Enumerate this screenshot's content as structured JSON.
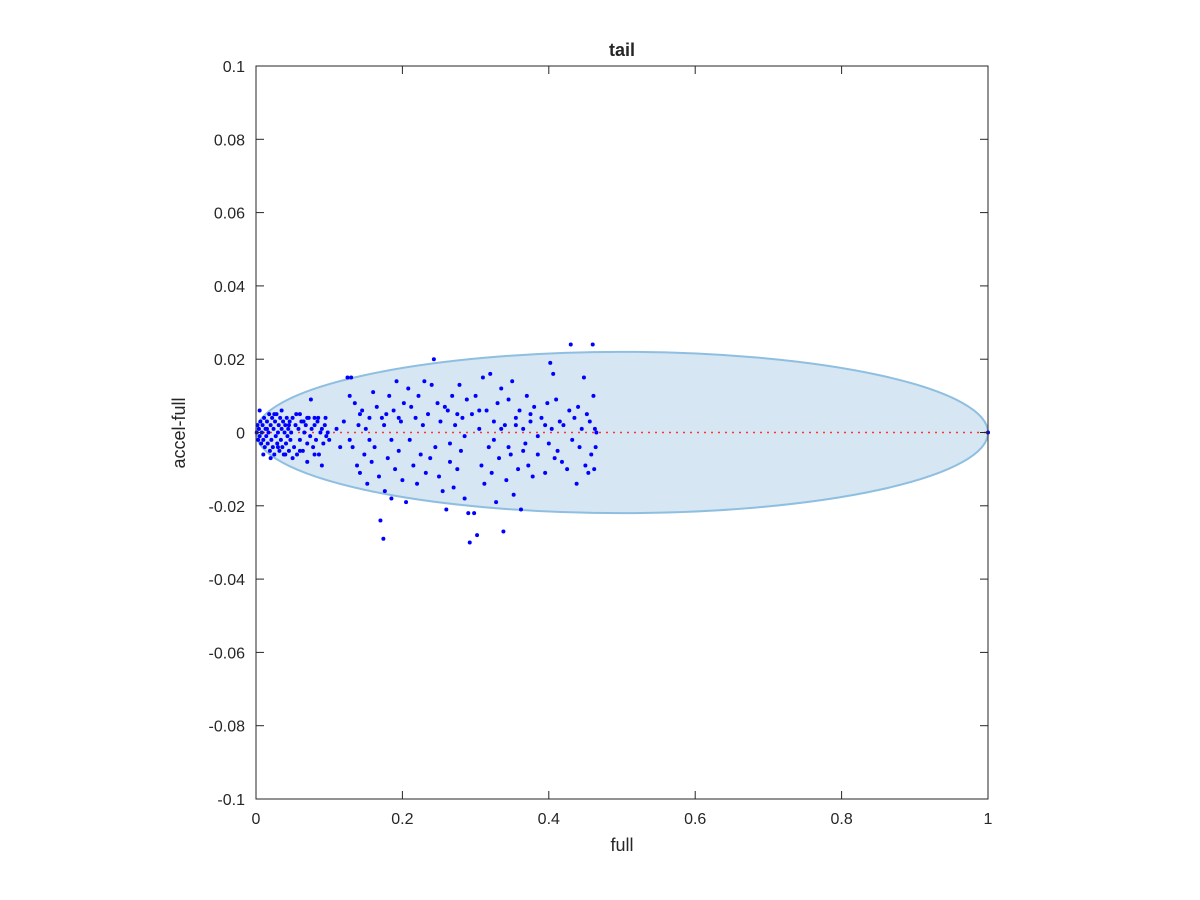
{
  "chart_data": {
    "type": "scatter",
    "title": "tail",
    "xlabel": "full",
    "ylabel": "accel-full",
    "xlim": [
      0,
      1
    ],
    "ylim": [
      -0.1,
      0.1
    ],
    "xticks": [
      0,
      0.2,
      0.4,
      0.6,
      0.8,
      1
    ],
    "xtick_labels": [
      "0",
      "0.2",
      "0.4",
      "0.6",
      "0.8",
      "1"
    ],
    "yticks": [
      -0.1,
      -0.08,
      -0.06,
      -0.04,
      -0.02,
      0,
      0.02,
      0.04,
      0.06,
      0.08,
      0.1
    ],
    "ytick_labels": [
      "-0.1",
      "-0.08",
      "-0.06",
      "-0.04",
      "-0.02",
      "0",
      "0.02",
      "0.04",
      "0.06",
      "0.08",
      "0.1"
    ],
    "grid": false,
    "colors": {
      "points": "#0000ff",
      "ellipse_fill": "#d6e6f3",
      "ellipse_stroke": "#8fbfe0",
      "reference_line": "#ff3333",
      "axes": "#262626"
    },
    "reference_line": {
      "y": 0,
      "x": [
        0,
        1
      ],
      "style": "dotted"
    },
    "ellipse": {
      "cx": 0.5,
      "cy": 0,
      "rx": 0.5,
      "ry": 0.022
    },
    "points": [
      [
        0.001,
        0.0
      ],
      [
        0.002,
        0.002
      ],
      [
        0.003,
        -0.002
      ],
      [
        0.004,
        0.001
      ],
      [
        0.005,
        -0.001
      ],
      [
        0.006,
        0.003
      ],
      [
        0.007,
        -0.003
      ],
      [
        0.008,
        0.0
      ],
      [
        0.009,
        0.002
      ],
      [
        0.01,
        -0.002
      ],
      [
        0.011,
        0.004
      ],
      [
        0.012,
        -0.004
      ],
      [
        0.013,
        0.001
      ],
      [
        0.014,
        -0.001
      ],
      [
        0.015,
        0.003
      ],
      [
        0.016,
        -0.003
      ],
      [
        0.017,
        0.0
      ],
      [
        0.018,
        0.005
      ],
      [
        0.019,
        -0.005
      ],
      [
        0.02,
        0.002
      ],
      [
        0.021,
        -0.002
      ],
      [
        0.022,
        0.004
      ],
      [
        0.023,
        -0.004
      ],
      [
        0.024,
        0.001
      ],
      [
        0.025,
        -0.006
      ],
      [
        0.026,
        0.003
      ],
      [
        0.027,
        -0.001
      ],
      [
        0.028,
        0.005
      ],
      [
        0.029,
        -0.003
      ],
      [
        0.03,
        0.0
      ],
      [
        0.031,
        0.002
      ],
      [
        0.032,
        -0.005
      ],
      [
        0.033,
        0.004
      ],
      [
        0.034,
        -0.002
      ],
      [
        0.035,
        0.001
      ],
      [
        0.036,
        -0.004
      ],
      [
        0.037,
        0.003
      ],
      [
        0.038,
        -0.006
      ],
      [
        0.039,
        0.0
      ],
      [
        0.04,
        0.002
      ],
      [
        0.041,
        -0.003
      ],
      [
        0.042,
        0.004
      ],
      [
        0.043,
        -0.001
      ],
      [
        0.044,
        0.001
      ],
      [
        0.045,
        -0.005
      ],
      [
        0.046,
        0.003
      ],
      [
        0.047,
        -0.002
      ],
      [
        0.048,
        0.0
      ],
      [
        0.05,
        0.004
      ],
      [
        0.052,
        -0.004
      ],
      [
        0.054,
        0.002
      ],
      [
        0.056,
        -0.006
      ],
      [
        0.058,
        0.001
      ],
      [
        0.06,
        -0.002
      ],
      [
        0.062,
        0.003
      ],
      [
        0.064,
        -0.005
      ],
      [
        0.066,
        0.0
      ],
      [
        0.068,
        0.002
      ],
      [
        0.07,
        -0.003
      ],
      [
        0.072,
        0.004
      ],
      [
        0.074,
        -0.001
      ],
      [
        0.076,
        0.001
      ],
      [
        0.078,
        -0.004
      ],
      [
        0.08,
        0.002
      ],
      [
        0.082,
        -0.002
      ],
      [
        0.084,
        0.003
      ],
      [
        0.086,
        -0.006
      ],
      [
        0.088,
        0.0
      ],
      [
        0.09,
        0.001
      ],
      [
        0.092,
        -0.003
      ],
      [
        0.094,
        0.002
      ],
      [
        0.096,
        -0.001
      ],
      [
        0.098,
        0.0
      ],
      [
        0.1,
        -0.002
      ],
      [
        0.005,
        0.006
      ],
      [
        0.01,
        -0.006
      ],
      [
        0.015,
        0.001
      ],
      [
        0.02,
        -0.007
      ],
      [
        0.025,
        0.005
      ],
      [
        0.03,
        -0.004
      ],
      [
        0.035,
        0.006
      ],
      [
        0.04,
        -0.006
      ],
      [
        0.045,
        0.002
      ],
      [
        0.05,
        -0.007
      ],
      [
        0.055,
        0.005
      ],
      [
        0.06,
        -0.005
      ],
      [
        0.065,
        0.003
      ],
      [
        0.07,
        -0.008
      ],
      [
        0.075,
        0.009
      ],
      [
        0.08,
        -0.006
      ],
      [
        0.085,
        0.004
      ],
      [
        0.09,
        -0.009
      ],
      [
        0.095,
        0.004
      ],
      [
        0.06,
        0.005
      ],
      [
        0.07,
        0.004
      ],
      [
        0.08,
        0.004
      ],
      [
        0.11,
        0.001
      ],
      [
        0.115,
        -0.004
      ],
      [
        0.12,
        0.003
      ],
      [
        0.125,
        0.015
      ],
      [
        0.128,
        -0.002
      ],
      [
        0.13,
        0.015
      ],
      [
        0.132,
        -0.004
      ],
      [
        0.135,
        0.008
      ],
      [
        0.138,
        -0.009
      ],
      [
        0.14,
        0.002
      ],
      [
        0.142,
        -0.011
      ],
      [
        0.145,
        0.006
      ],
      [
        0.148,
        -0.006
      ],
      [
        0.15,
        0.001
      ],
      [
        0.152,
        -0.014
      ],
      [
        0.155,
        0.004
      ],
      [
        0.158,
        -0.008
      ],
      [
        0.16,
        0.011
      ],
      [
        0.162,
        -0.004
      ],
      [
        0.165,
        0.007
      ],
      [
        0.168,
        -0.012
      ],
      [
        0.17,
        -0.024
      ],
      [
        0.172,
        0.004
      ],
      [
        0.174,
        -0.029
      ],
      [
        0.176,
        -0.016
      ],
      [
        0.178,
        0.005
      ],
      [
        0.18,
        -0.007
      ],
      [
        0.182,
        0.01
      ],
      [
        0.185,
        -0.018
      ],
      [
        0.188,
        0.006
      ],
      [
        0.19,
        -0.01
      ],
      [
        0.192,
        0.014
      ],
      [
        0.195,
        -0.005
      ],
      [
        0.198,
        0.003
      ],
      [
        0.2,
        -0.013
      ],
      [
        0.202,
        0.008
      ],
      [
        0.205,
        -0.019
      ],
      [
        0.208,
        0.012
      ],
      [
        0.21,
        -0.002
      ],
      [
        0.212,
        0.007
      ],
      [
        0.215,
        -0.009
      ],
      [
        0.218,
        0.004
      ],
      [
        0.22,
        -0.014
      ],
      [
        0.222,
        0.01
      ],
      [
        0.225,
        -0.006
      ],
      [
        0.228,
        0.002
      ],
      [
        0.23,
        0.014
      ],
      [
        0.232,
        -0.011
      ],
      [
        0.235,
        0.005
      ],
      [
        0.238,
        -0.007
      ],
      [
        0.24,
        0.013
      ],
      [
        0.243,
        0.02
      ],
      [
        0.245,
        -0.004
      ],
      [
        0.248,
        0.008
      ],
      [
        0.25,
        -0.012
      ],
      [
        0.252,
        0.003
      ],
      [
        0.255,
        -0.016
      ],
      [
        0.258,
        0.007
      ],
      [
        0.26,
        -0.021
      ],
      [
        0.262,
        0.006
      ],
      [
        0.265,
        -0.008
      ],
      [
        0.268,
        0.01
      ],
      [
        0.27,
        -0.015
      ],
      [
        0.272,
        0.002
      ],
      [
        0.275,
        -0.01
      ],
      [
        0.278,
        0.013
      ],
      [
        0.28,
        -0.005
      ],
      [
        0.282,
        0.004
      ],
      [
        0.285,
        -0.018
      ],
      [
        0.288,
        0.009
      ],
      [
        0.29,
        -0.022
      ],
      [
        0.292,
        -0.03
      ],
      [
        0.295,
        0.005
      ],
      [
        0.298,
        -0.022
      ],
      [
        0.3,
        0.01
      ],
      [
        0.302,
        -0.028
      ],
      [
        0.305,
        0.001
      ],
      [
        0.308,
        -0.009
      ],
      [
        0.31,
        0.015
      ],
      [
        0.312,
        -0.014
      ],
      [
        0.315,
        0.006
      ],
      [
        0.318,
        -0.004
      ],
      [
        0.32,
        0.016
      ],
      [
        0.322,
        -0.011
      ],
      [
        0.325,
        0.003
      ],
      [
        0.328,
        -0.019
      ],
      [
        0.33,
        0.008
      ],
      [
        0.332,
        -0.007
      ],
      [
        0.335,
        0.012
      ],
      [
        0.338,
        -0.027
      ],
      [
        0.34,
        0.002
      ],
      [
        0.342,
        -0.013
      ],
      [
        0.345,
        0.009
      ],
      [
        0.348,
        -0.006
      ],
      [
        0.35,
        0.014
      ],
      [
        0.352,
        -0.017
      ],
      [
        0.355,
        0.004
      ],
      [
        0.358,
        -0.01
      ],
      [
        0.36,
        0.006
      ],
      [
        0.362,
        -0.021
      ],
      [
        0.365,
        0.001
      ],
      [
        0.368,
        -0.003
      ],
      [
        0.37,
        0.01
      ],
      [
        0.372,
        -0.009
      ],
      [
        0.375,
        0.005
      ],
      [
        0.378,
        -0.012
      ],
      [
        0.38,
        0.007
      ],
      [
        0.385,
        -0.006
      ],
      [
        0.39,
        0.004
      ],
      [
        0.395,
        -0.011
      ],
      [
        0.398,
        0.008
      ],
      [
        0.4,
        -0.003
      ],
      [
        0.402,
        0.019
      ],
      [
        0.404,
        0.001
      ],
      [
        0.406,
        0.016
      ],
      [
        0.408,
        -0.007
      ],
      [
        0.41,
        0.009
      ],
      [
        0.412,
        -0.005
      ],
      [
        0.415,
        0.003
      ],
      [
        0.418,
        -0.008
      ],
      [
        0.42,
        0.002
      ],
      [
        0.425,
        -0.01
      ],
      [
        0.428,
        0.006
      ],
      [
        0.43,
        0.024
      ],
      [
        0.432,
        -0.002
      ],
      [
        0.435,
        0.004
      ],
      [
        0.438,
        -0.014
      ],
      [
        0.44,
        0.007
      ],
      [
        0.442,
        -0.004
      ],
      [
        0.445,
        0.001
      ],
      [
        0.448,
        0.015
      ],
      [
        0.45,
        -0.009
      ],
      [
        0.452,
        0.005
      ],
      [
        0.454,
        -0.011
      ],
      [
        0.456,
        0.003
      ],
      [
        0.458,
        -0.006
      ],
      [
        0.46,
        0.024
      ],
      [
        0.461,
        0.01
      ],
      [
        0.462,
        -0.01
      ],
      [
        0.463,
        0.001
      ],
      [
        0.464,
        -0.004
      ],
      [
        0.465,
        0.0
      ],
      [
        0.175,
        0.002
      ],
      [
        0.185,
        -0.002
      ],
      [
        0.195,
        0.004
      ],
      [
        0.265,
        -0.003
      ],
      [
        0.275,
        0.005
      ],
      [
        0.285,
        -0.001
      ],
      [
        0.325,
        -0.002
      ],
      [
        0.335,
        0.001
      ],
      [
        0.345,
        -0.004
      ],
      [
        0.355,
        0.002
      ],
      [
        0.365,
        -0.005
      ],
      [
        0.375,
        0.003
      ],
      [
        0.385,
        -0.001
      ],
      [
        0.395,
        0.002
      ],
      [
        0.128,
        0.01
      ],
      [
        0.142,
        0.005
      ],
      [
        0.155,
        -0.002
      ],
      [
        0.305,
        0.006
      ],
      [
        1.0,
        0.0
      ]
    ]
  }
}
